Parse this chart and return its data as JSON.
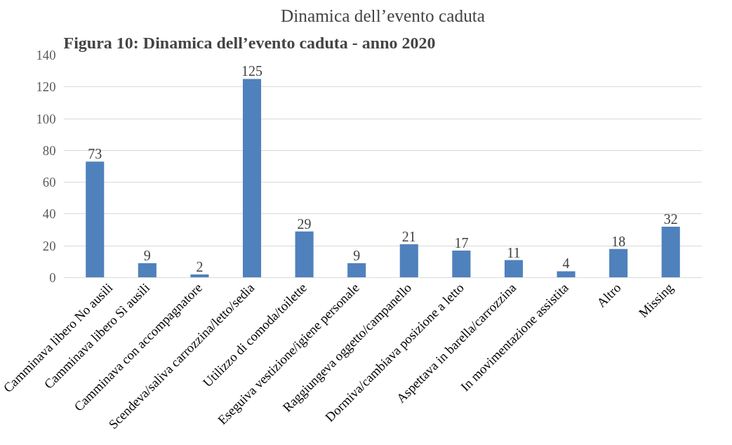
{
  "chart_data": {
    "type": "bar",
    "title": "Figura 10: Dinamica dell’evento caduta - anno 2020",
    "subtitle": "Dinamica dell’evento caduta",
    "categories": [
      "Camminava libero No ausili",
      "Camminava libero Sì ausili",
      "Camminava con accompagnatore",
      "Scendeva/saliva carrozzina/letto/sedia",
      "Utilizzo di comoda/toilette",
      "Eseguiva vestizione/igiene personale",
      "Raggiungeva oggetto/campanello",
      "Dormiva/cambiava posizione a letto",
      "Aspettava in barella/carrozzina",
      "In movimentazione assistita",
      "Altro",
      "Missing"
    ],
    "values": [
      73,
      9,
      2,
      125,
      29,
      9,
      21,
      17,
      11,
      4,
      18,
      32
    ],
    "color": "#4f81bd",
    "ylim": [
      0,
      140
    ],
    "yticks": [
      0,
      20,
      40,
      60,
      80,
      100,
      120,
      140
    ],
    "grid": "y",
    "data_labels": true
  }
}
